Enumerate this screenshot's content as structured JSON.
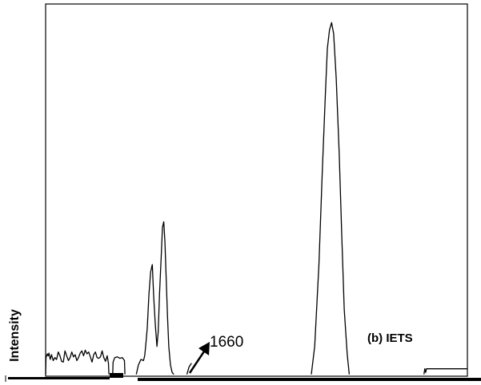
{
  "chart_data": {
    "type": "line",
    "title": "",
    "xlabel": "",
    "ylabel": "Intensity",
    "panel_label": "(b) IETS",
    "annotations": [
      {
        "text": "1660"
      }
    ],
    "xlim": [
      0,
      100
    ],
    "ylim": [
      0,
      100
    ],
    "grid": false,
    "legend": "none",
    "colors": {
      "line": "#000000",
      "frame": "#000000",
      "background": "#ffffff"
    },
    "series": [
      {
        "x": [
          0.0,
          0.1,
          0.4,
          0.6,
          0.8,
          1.1,
          1.4,
          1.8,
          2.2,
          2.6,
          3.0,
          3.4,
          3.8,
          4.2,
          4.6,
          5.0,
          5.4,
          5.8,
          6.2,
          6.6,
          7.0,
          7.4,
          7.8,
          8.2,
          8.6,
          9.0,
          9.4,
          9.8,
          10.2,
          10.6,
          11.0,
          11.4,
          11.8,
          12.2,
          12.6,
          13.0,
          13.4,
          13.8,
          14.2,
          14.6,
          14.9,
          15.0
        ],
        "y": [
          0.5,
          5.0,
          6.0,
          5.5,
          6.2,
          4.5,
          5.8,
          4.2,
          5.0,
          4.5,
          6.5,
          5.5,
          4.0,
          3.8,
          6.8,
          5.5,
          4.2,
          5.0,
          6.5,
          5.2,
          5.8,
          4.2,
          5.0,
          6.2,
          6.8,
          5.5,
          7.0,
          6.0,
          6.5,
          5.2,
          3.8,
          5.8,
          6.5,
          5.0,
          4.8,
          5.2,
          6.8,
          5.0,
          4.0,
          5.5,
          3.5,
          0.5
        ]
      },
      {
        "x": [
          15.9,
          16.0,
          16.4,
          17.0,
          17.6,
          18.2,
          18.7,
          18.8
        ],
        "y": [
          0.5,
          3.8,
          5.0,
          5.2,
          4.8,
          5.0,
          4.2,
          0.5
        ]
      },
      {
        "x": [
          21.5,
          22.0,
          22.6,
          23.2,
          23.5,
          23.8,
          24.1,
          24.5,
          24.9,
          25.3,
          25.6,
          26.0,
          26.4,
          26.7,
          27.0,
          27.4,
          27.7,
          28.0,
          28.3,
          28.6,
          28.9,
          29.2,
          29.6,
          30.0,
          30.4
        ],
        "y": [
          0.5,
          3.0,
          4.5,
          4.2,
          5.5,
          9.0,
          13.0,
          22.0,
          28.0,
          30.0,
          22.0,
          14.0,
          8.0,
          12.0,
          22.0,
          32.0,
          40.0,
          41.5,
          36.0,
          26.0,
          16.0,
          8.0,
          3.0,
          1.0,
          0.5
        ]
      },
      {
        "x": [
          33.5,
          34.0,
          34.6
        ],
        "y": [
          0.5,
          2.5,
          3.5
        ]
      },
      {
        "x": [
          63.0,
          63.8,
          64.8,
          65.6,
          66.3,
          66.8,
          67.3,
          67.8,
          68.3,
          68.9,
          69.6,
          70.2,
          70.8,
          71.5,
          72.0
        ],
        "y": [
          0.5,
          8.0,
          30.0,
          55.0,
          75.0,
          88.0,
          93.0,
          95.0,
          92.0,
          80.0,
          60.0,
          38.0,
          18.0,
          6.0,
          0.5
        ]
      },
      {
        "x": [
          89.7,
          89.9,
          90.1,
          90.3,
          91.0,
          95.0,
          100.0
        ],
        "y": [
          0.5,
          2.0,
          1.0,
          2.0,
          2.0,
          2.0,
          2.0
        ]
      }
    ]
  }
}
